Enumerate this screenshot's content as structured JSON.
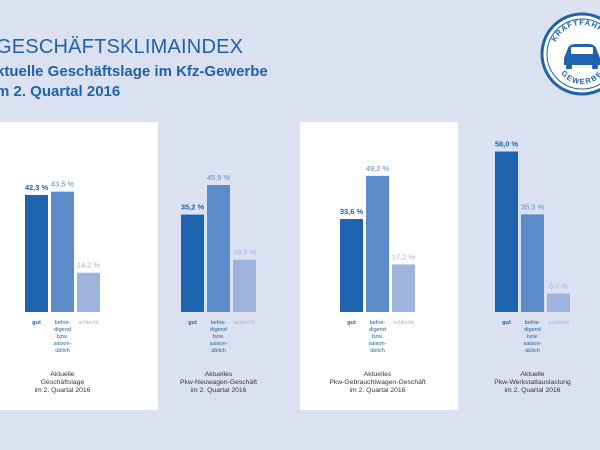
{
  "header": {
    "title": "GESCHÄFTSKLIMAINDEX",
    "subtitle_line1": "ktuelle Geschäftslage im Kfz-Gewerbe",
    "subtitle_line2": "m 2. Quartal 2016"
  },
  "logo": {
    "top_text": "KRAFTFAHRZE",
    "bottom_text": "GEWERBE"
  },
  "colors": {
    "background": "#dbe1f0",
    "panel": "#ffffff",
    "bar_gut": "#1e63ad",
    "bar_befriedigend": "#5b8bc9",
    "bar_schlecht": "#9fb4dc",
    "text_blue": "#1e63ad"
  },
  "chart_data": [
    {
      "type": "bar",
      "categories": [
        "gut",
        "befrie-\ndigend\nbzw.\nsaison-\nüblich",
        "schlecht"
      ],
      "values": [
        42.3,
        43.5,
        14.2
      ],
      "value_labels": [
        "42,3 %",
        "43,5 %",
        "14,2 %"
      ],
      "caption": [
        "Aktuelle",
        "Geschäftslage",
        "im  2. Quartal 2016"
      ],
      "ylim": [
        0,
        60
      ]
    },
    {
      "type": "bar",
      "categories": [
        "gut",
        "befrie-\ndigend\nbzw.\nsaison-\nüblich",
        "schlecht"
      ],
      "values": [
        35.2,
        45.9,
        18.9
      ],
      "value_labels": [
        "35,2 %",
        "45,9 %",
        "18,9 %"
      ],
      "caption": [
        "Aktuelles",
        "Pkw-Neuwagen-Geschäft",
        "im 2. Quartal 2016"
      ],
      "ylim": [
        0,
        60
      ]
    },
    {
      "type": "bar",
      "categories": [
        "gut",
        "befrie-\ndigend\nbzw.\nsaison-\nüblich",
        "schlecht"
      ],
      "values": [
        33.6,
        49.2,
        17.2
      ],
      "value_labels": [
        "33,6 %",
        "49,2 %",
        "17,2 %"
      ],
      "caption": [
        "Aktuelles",
        "Pkw-Gebrauchtwagen-Geschäft",
        "im  2. Quartal 2016"
      ],
      "ylim": [
        0,
        60
      ]
    },
    {
      "type": "bar",
      "categories": [
        "gut",
        "befrie-\ndigend\nbzw.\nsaison-\nüblich",
        "schlecht"
      ],
      "values": [
        58.0,
        35.3,
        6.7
      ],
      "value_labels": [
        "58,0 %",
        "35,3 %",
        "6,7 %"
      ],
      "caption": [
        "Aktuelle",
        "Pkw-Werkstattauslastung",
        "im  2. Quartal 2016"
      ],
      "ylim": [
        0,
        60
      ]
    }
  ]
}
